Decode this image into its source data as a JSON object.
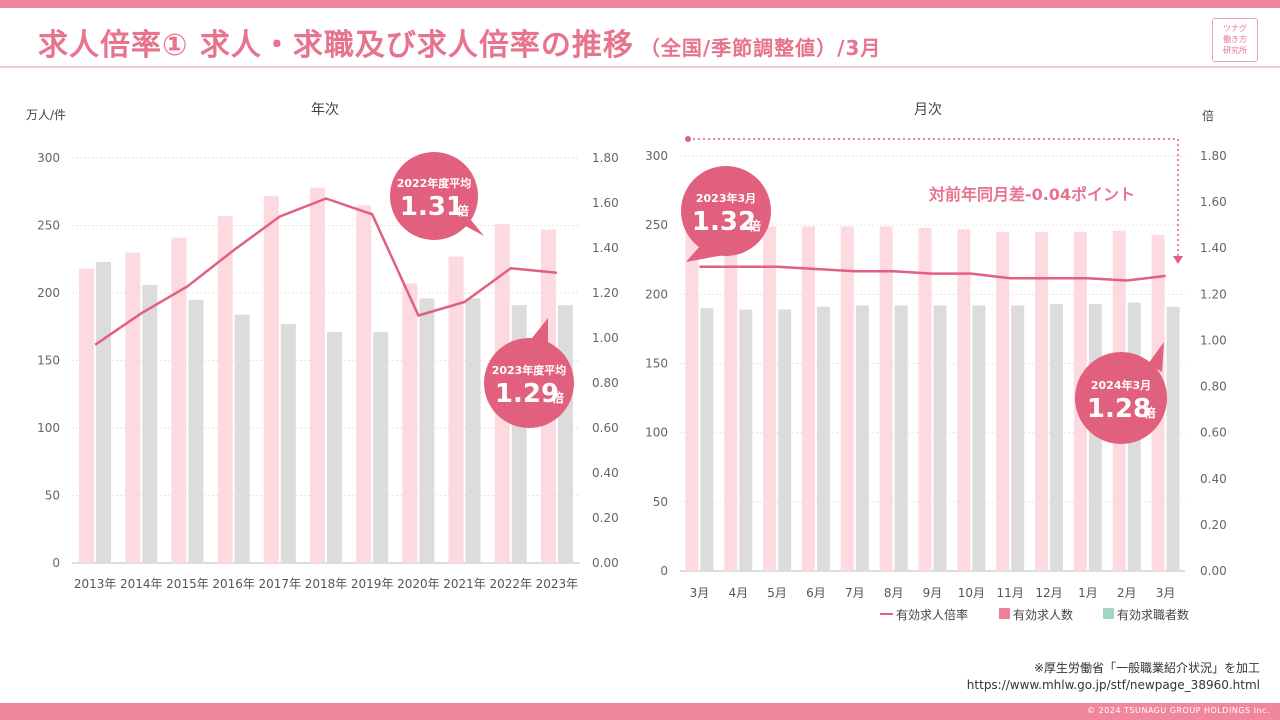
{
  "title": {
    "main": "求人倍率① 求人・求職及び求人倍率の推移",
    "sub": "（全国/季節調整値）/3月"
  },
  "logo": [
    "ツナグ",
    "働き方",
    "研究所"
  ],
  "source": {
    "line1": "※厚生労働省「一般職業紹介状況」を加工",
    "line2": "https://www.mhlw.go.jp/stf/newpage_38960.html"
  },
  "copyright": "© 2024 TSUNAGU GROUP HOLDINGS Inc.",
  "colors": {
    "offers": "#fdd9e0",
    "seekers": "#dcdcdc",
    "ratio": "#e0607e",
    "accent": "#e8738f"
  },
  "legend": {
    "ratio": "有効求人倍率",
    "offers": "有効求人数",
    "seekers": "有効求職者数"
  },
  "chart_data": [
    {
      "type": "bar",
      "title": "年次",
      "ylabel": "万人/件",
      "ylabel_right": "",
      "categories": [
        "2013年",
        "2014年",
        "2015年",
        "2016年",
        "2017年",
        "2018年",
        "2019年",
        "2020年",
        "2021年",
        "2022年",
        "2023年"
      ],
      "series": [
        {
          "name": "有効求人数",
          "values": [
            218,
            230,
            241,
            257,
            272,
            278,
            265,
            207,
            227,
            251,
            247
          ]
        },
        {
          "name": "有効求職者数",
          "values": [
            223,
            206,
            195,
            184,
            177,
            171,
            171,
            196,
            196,
            191,
            191
          ]
        },
        {
          "name": "有効求人倍率",
          "axis": "right",
          "type": "line",
          "values": [
            0.97,
            1.11,
            1.23,
            1.39,
            1.54,
            1.62,
            1.55,
            1.1,
            1.16,
            1.31,
            1.29
          ]
        }
      ],
      "ylim": [
        0,
        300
      ],
      "yticks": [
        "0",
        "50",
        "100",
        "150",
        "200",
        "250",
        "300"
      ],
      "ylim_right": [
        0,
        1.8
      ],
      "yticks_right": [
        "0.00",
        "0.20",
        "0.40",
        "0.60",
        "0.80",
        "1.00",
        "1.20",
        "1.40",
        "1.60",
        "1.80"
      ],
      "callouts": [
        {
          "label": "2022年度平均",
          "value": "1.31",
          "unit": "倍"
        },
        {
          "label": "2023年度平均",
          "value": "1.29",
          "unit": "倍"
        }
      ]
    },
    {
      "type": "bar",
      "title": "月次",
      "ylabel": "",
      "ylabel_right": "倍",
      "categories": [
        "3月",
        "4月",
        "5月",
        "6月",
        "7月",
        "8月",
        "9月",
        "10月",
        "11月",
        "12月",
        "1月",
        "2月",
        "3月"
      ],
      "series": [
        {
          "name": "有効求人数",
          "values": [
            250,
            249,
            249,
            249,
            249,
            249,
            248,
            247,
            245,
            245,
            245,
            246,
            243
          ]
        },
        {
          "name": "有効求職者数",
          "values": [
            190,
            189,
            189,
            191,
            192,
            192,
            192,
            192,
            192,
            193,
            193,
            194,
            191
          ]
        },
        {
          "name": "有効求人倍率",
          "axis": "right",
          "type": "line",
          "values": [
            1.32,
            1.32,
            1.32,
            1.31,
            1.3,
            1.3,
            1.29,
            1.29,
            1.27,
            1.27,
            1.27,
            1.26,
            1.28
          ]
        }
      ],
      "ylim": [
        0,
        300
      ],
      "yticks": [
        "0",
        "50",
        "100",
        "150",
        "200",
        "250",
        "300"
      ],
      "ylim_right": [
        0,
        1.8
      ],
      "yticks_right": [
        "0.00",
        "0.20",
        "0.40",
        "0.60",
        "0.80",
        "1.00",
        "1.20",
        "1.40",
        "1.60",
        "1.80"
      ],
      "callouts": [
        {
          "label": "2023年3月",
          "value": "1.32",
          "unit": "倍"
        },
        {
          "label": "2024年3月",
          "value": "1.28",
          "unit": "倍"
        }
      ],
      "annotation": "対前年同月差-0.04ポイント"
    }
  ]
}
